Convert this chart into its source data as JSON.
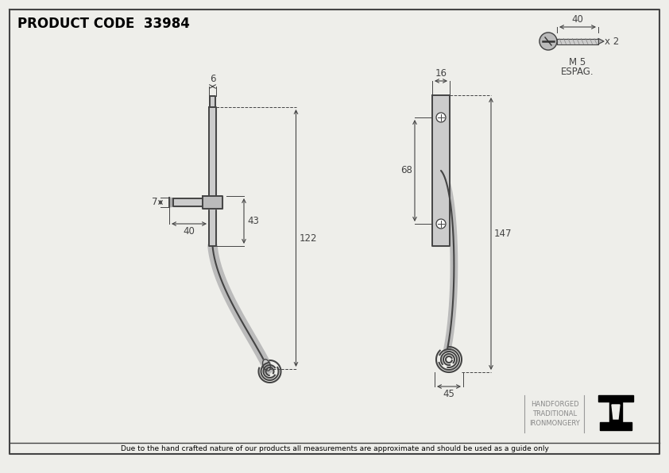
{
  "title": "PRODUCT CODE  33984",
  "footer": "Due to the hand crafted nature of our products all measurements are approximate and should be used as a guide only",
  "brand_line1": "HANDFORGED",
  "brand_line2": "TRADITIONAL",
  "brand_line3": "IRONMONGERY",
  "bg_color": "#eeeeea",
  "line_color": "#444444",
  "dim_color": "#444444",
  "border_color": "#444444",
  "screw_label1": "M 5",
  "screw_label2": "ESPAG.",
  "screw_count": "x 2",
  "screw_length": "40",
  "dim_6": "6",
  "dim_7": "7",
  "dim_40": "40",
  "dim_43": "43",
  "dim_122": "122",
  "dim_16": "16",
  "dim_68": "68",
  "dim_147": "147",
  "dim_45": "45"
}
